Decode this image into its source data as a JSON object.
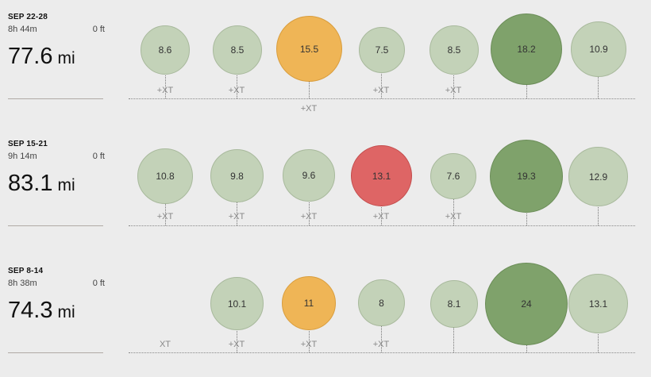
{
  "colors": {
    "easy": "#c3d2b8",
    "long_run": "#7fa26b",
    "tempo": "#efb556",
    "hard": "#de6565",
    "background": "#ececec"
  },
  "weeks": [
    {
      "label": "SEP 22-28",
      "duration": "8h 44m",
      "elevation": "0 ft",
      "distance": "77.6",
      "unit": "mi",
      "days": [
        {
          "value": "8.6",
          "type": "easy",
          "xt": "+XT"
        },
        {
          "value": "8.5",
          "type": "easy",
          "xt": "+XT"
        },
        {
          "value": "15.5",
          "type": "tempo",
          "xt": "+XT"
        },
        {
          "value": "7.5",
          "type": "easy",
          "xt": "+XT"
        },
        {
          "value": "8.5",
          "type": "easy",
          "xt": "+XT"
        },
        {
          "value": "18.2",
          "type": "long",
          "xt": ""
        },
        {
          "value": "10.9",
          "type": "easy",
          "xt": ""
        }
      ]
    },
    {
      "label": "SEP 15-21",
      "duration": "9h 14m",
      "elevation": "0 ft",
      "distance": "83.1",
      "unit": "mi",
      "days": [
        {
          "value": "10.8",
          "type": "easy",
          "xt": "+XT"
        },
        {
          "value": "9.8",
          "type": "easy",
          "xt": "+XT"
        },
        {
          "value": "9.6",
          "type": "easy",
          "xt": "+XT"
        },
        {
          "value": "13.1",
          "type": "hard",
          "xt": "+XT"
        },
        {
          "value": "7.6",
          "type": "easy",
          "xt": "+XT"
        },
        {
          "value": "19.3",
          "type": "long",
          "xt": ""
        },
        {
          "value": "12.9",
          "type": "easy",
          "xt": ""
        }
      ]
    },
    {
      "label": "SEP 8-14",
      "duration": "8h 38m",
      "elevation": "0 ft",
      "distance": "74.3",
      "unit": "mi",
      "days": [
        {
          "value": "",
          "type": "none",
          "xt": "XT"
        },
        {
          "value": "10.1",
          "type": "easy",
          "xt": "+XT"
        },
        {
          "value": "11",
          "type": "tempo",
          "xt": "+XT"
        },
        {
          "value": "8",
          "type": "easy",
          "xt": "+XT"
        },
        {
          "value": "8.1",
          "type": "easy",
          "xt": ""
        },
        {
          "value": "24",
          "type": "long",
          "xt": ""
        },
        {
          "value": "13.1",
          "type": "easy",
          "xt": ""
        }
      ]
    }
  ]
}
